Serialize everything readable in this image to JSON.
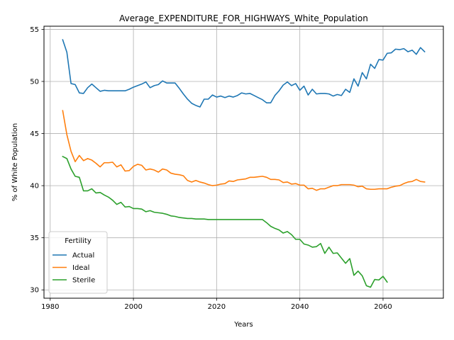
{
  "chart_data": {
    "type": "line",
    "title": "Average_EXPENDITURE_FOR_HIGHWAYS_White_Population",
    "xlabel": "Years",
    "ylabel": "% of White Population",
    "xlim": [
      1978.5,
      2074.5
    ],
    "ylim": [
      29.2,
      55.3
    ],
    "xticks": [
      1980,
      2000,
      2020,
      2040,
      2060
    ],
    "yticks": [
      30,
      35,
      40,
      45,
      50,
      55
    ],
    "grid": true,
    "legend": {
      "title": "Fertility",
      "position": "lower-left"
    },
    "series": [
      {
        "name": "Actual",
        "color": "#1f77b4",
        "x": [
          1983,
          1984,
          1985,
          1986,
          1987,
          1988,
          1989,
          1990,
          1991,
          1992,
          1993,
          1994,
          1995,
          1996,
          1997,
          1998,
          1999,
          2000,
          2001,
          2002,
          2003,
          2004,
          2005,
          2006,
          2007,
          2008,
          2009,
          2010,
          2011,
          2012,
          2013,
          2014,
          2015,
          2016,
          2017,
          2018,
          2019,
          2020,
          2021,
          2022,
          2023,
          2024,
          2025,
          2026,
          2027,
          2028,
          2029,
          2030,
          2031,
          2032,
          2033,
          2034,
          2035,
          2036,
          2037,
          2038,
          2039,
          2040,
          2041,
          2042,
          2043,
          2044,
          2045,
          2046,
          2047,
          2048,
          2049,
          2050,
          2051,
          2052,
          2053,
          2054,
          2055,
          2056,
          2057,
          2058,
          2059,
          2060,
          2061,
          2062,
          2063,
          2064,
          2065,
          2066,
          2067,
          2068,
          2069,
          2070
        ],
        "values": [
          54.0,
          52.8,
          49.8,
          49.7,
          48.9,
          48.85,
          49.4,
          49.75,
          49.4,
          49.05,
          49.15,
          49.1,
          49.1,
          49.1,
          49.1,
          49.1,
          49.25,
          49.45,
          49.6,
          49.75,
          49.95,
          49.4,
          49.6,
          49.7,
          50.05,
          49.85,
          49.85,
          49.85,
          49.35,
          48.8,
          48.3,
          47.9,
          47.7,
          47.55,
          48.3,
          48.3,
          48.7,
          48.5,
          48.6,
          48.45,
          48.6,
          48.5,
          48.65,
          48.9,
          48.8,
          48.85,
          48.65,
          48.45,
          48.25,
          47.95,
          47.95,
          48.65,
          49.1,
          49.65,
          49.95,
          49.6,
          49.8,
          49.15,
          49.55,
          48.7,
          49.25,
          48.8,
          48.85,
          48.85,
          48.8,
          48.6,
          48.75,
          48.65,
          49.25,
          48.95,
          50.25,
          49.55,
          50.85,
          50.25,
          51.65,
          51.25,
          52.1,
          52.05,
          52.7,
          52.75,
          53.1,
          53.05,
          53.15,
          52.85,
          53.0,
          52.6,
          53.25,
          52.85
        ]
      },
      {
        "name": "Ideal",
        "color": "#ff7f0e",
        "x": [
          1983,
          1984,
          1985,
          1986,
          1987,
          1988,
          1989,
          1990,
          1991,
          1992,
          1993,
          1994,
          1995,
          1996,
          1997,
          1998,
          1999,
          2000,
          2001,
          2002,
          2003,
          2004,
          2005,
          2006,
          2007,
          2008,
          2009,
          2010,
          2011,
          2012,
          2013,
          2014,
          2015,
          2016,
          2017,
          2018,
          2019,
          2020,
          2021,
          2022,
          2023,
          2024,
          2025,
          2026,
          2027,
          2028,
          2029,
          2030,
          2031,
          2032,
          2033,
          2034,
          2035,
          2036,
          2037,
          2038,
          2039,
          2040,
          2041,
          2042,
          2043,
          2044,
          2045,
          2046,
          2047,
          2048,
          2049,
          2050,
          2051,
          2052,
          2053,
          2054,
          2055,
          2056,
          2057,
          2058,
          2059,
          2060,
          2061,
          2062,
          2063,
          2064,
          2065,
          2066,
          2067,
          2068,
          2069,
          2070
        ],
        "values": [
          47.2,
          44.9,
          43.3,
          42.3,
          42.9,
          42.4,
          42.6,
          42.45,
          42.15,
          41.8,
          42.2,
          42.2,
          42.25,
          41.8,
          42.0,
          41.4,
          41.45,
          41.85,
          42.05,
          41.95,
          41.5,
          41.6,
          41.5,
          41.3,
          41.6,
          41.5,
          41.2,
          41.1,
          41.05,
          40.95,
          40.5,
          40.35,
          40.5,
          40.35,
          40.25,
          40.1,
          40.0,
          40.05,
          40.15,
          40.2,
          40.45,
          40.4,
          40.55,
          40.6,
          40.65,
          40.8,
          40.8,
          40.85,
          40.9,
          40.8,
          40.6,
          40.6,
          40.55,
          40.3,
          40.35,
          40.15,
          40.2,
          40.05,
          40.05,
          39.7,
          39.75,
          39.55,
          39.7,
          39.7,
          39.85,
          40.0,
          40.0,
          40.1,
          40.1,
          40.1,
          40.05,
          39.9,
          39.95,
          39.7,
          39.65,
          39.65,
          39.7,
          39.7,
          39.7,
          39.85,
          39.95,
          40.0,
          40.2,
          40.35,
          40.4,
          40.6,
          40.4,
          40.35
        ]
      },
      {
        "name": "Sterile",
        "color": "#2ca02c",
        "x": [
          1983,
          1984,
          1985,
          1986,
          1987,
          1988,
          1989,
          1990,
          1991,
          1992,
          1993,
          1994,
          1995,
          1996,
          1997,
          1998,
          1999,
          2000,
          2001,
          2002,
          2003,
          2004,
          2005,
          2006,
          2007,
          2008,
          2009,
          2010,
          2011,
          2012,
          2013,
          2014,
          2015,
          2016,
          2017,
          2018,
          2019,
          2020,
          2021,
          2022,
          2023,
          2024,
          2025,
          2026,
          2027,
          2028,
          2029,
          2030,
          2031,
          2032,
          2033,
          2034,
          2035,
          2036,
          2037,
          2038,
          2039,
          2040,
          2041,
          2042,
          2043,
          2044,
          2045,
          2046,
          2047,
          2048,
          2049,
          2050,
          2051,
          2052,
          2053,
          2054,
          2055,
          2056,
          2057,
          2058,
          2059,
          2060,
          2061
        ],
        "values": [
          42.8,
          42.6,
          41.6,
          40.9,
          40.8,
          39.5,
          39.5,
          39.7,
          39.3,
          39.35,
          39.1,
          38.9,
          38.6,
          38.2,
          38.4,
          37.95,
          38.0,
          37.8,
          37.8,
          37.75,
          37.5,
          37.6,
          37.45,
          37.4,
          37.35,
          37.25,
          37.1,
          37.05,
          36.95,
          36.9,
          36.85,
          36.85,
          36.8,
          36.8,
          36.8,
          36.75,
          36.75,
          36.75,
          36.75,
          36.75,
          36.75,
          36.75,
          36.75,
          36.75,
          36.75,
          36.75,
          36.75,
          36.75,
          36.75,
          36.45,
          36.1,
          35.9,
          35.75,
          35.45,
          35.6,
          35.3,
          34.85,
          34.85,
          34.4,
          34.3,
          34.1,
          34.15,
          34.45,
          33.5,
          34.1,
          33.5,
          33.55,
          33.05,
          32.55,
          33.0,
          31.4,
          31.8,
          31.35,
          30.4,
          30.25,
          31.0,
          30.95,
          31.3,
          30.75
        ]
      }
    ]
  }
}
